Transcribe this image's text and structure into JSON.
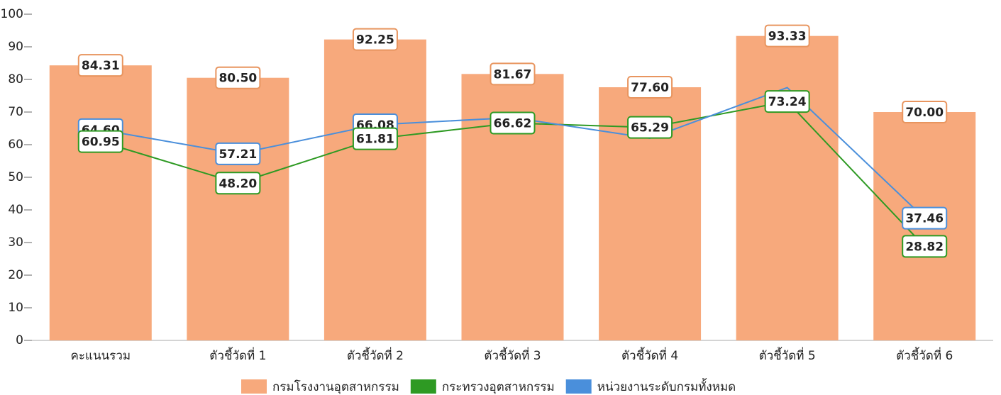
{
  "chart_data": {
    "type": "bar_line",
    "categories": [
      "คะแนนรวม",
      "ตัวชี้วัดที่ 1",
      "ตัวชี้วัดที่ 2",
      "ตัวชี้วัดที่ 3",
      "ตัวชี้วัดที่ 4",
      "ตัวชี้วัดที่ 5",
      "ตัวชี้วัดที่ 6"
    ],
    "series": [
      {
        "name": "กรมโรงงานอุตสาหกรรม",
        "color": "#f7a97c",
        "kind": "bar",
        "values": [
          84.31,
          80.5,
          92.25,
          81.67,
          77.6,
          93.33,
          70
        ],
        "value_labels": [
          "84.31",
          "80.50",
          "92.25",
          "81.67",
          "77.60",
          "93.33",
          "70.00"
        ]
      },
      {
        "name": "กระทรวงอุตสาหกรรม",
        "color": "#2e9a23",
        "kind": "line",
        "values": [
          60.95,
          48.2,
          61.81,
          66.62,
          65.29,
          73.24,
          28.82
        ],
        "value_labels": [
          "60.95",
          "48.20",
          "61.81",
          "66.62",
          "65.29",
          "73.24",
          "28.82"
        ]
      },
      {
        "name": "หน่วยงานระดับกรมทั้งหมด",
        "color": "#4a8fdb",
        "kind": "line",
        "values": [
          64.6,
          57.21,
          66.08,
          68.3,
          61.97,
          77.5,
          37.46
        ],
        "value_labels": [
          "64.60",
          "57.21",
          "66.08",
          null,
          null,
          null,
          "37.46"
        ]
      }
    ],
    "ylim": [
      0,
      100
    ],
    "yticks": [
      0,
      10,
      20,
      30,
      40,
      50,
      60,
      70,
      80,
      90,
      100
    ]
  }
}
